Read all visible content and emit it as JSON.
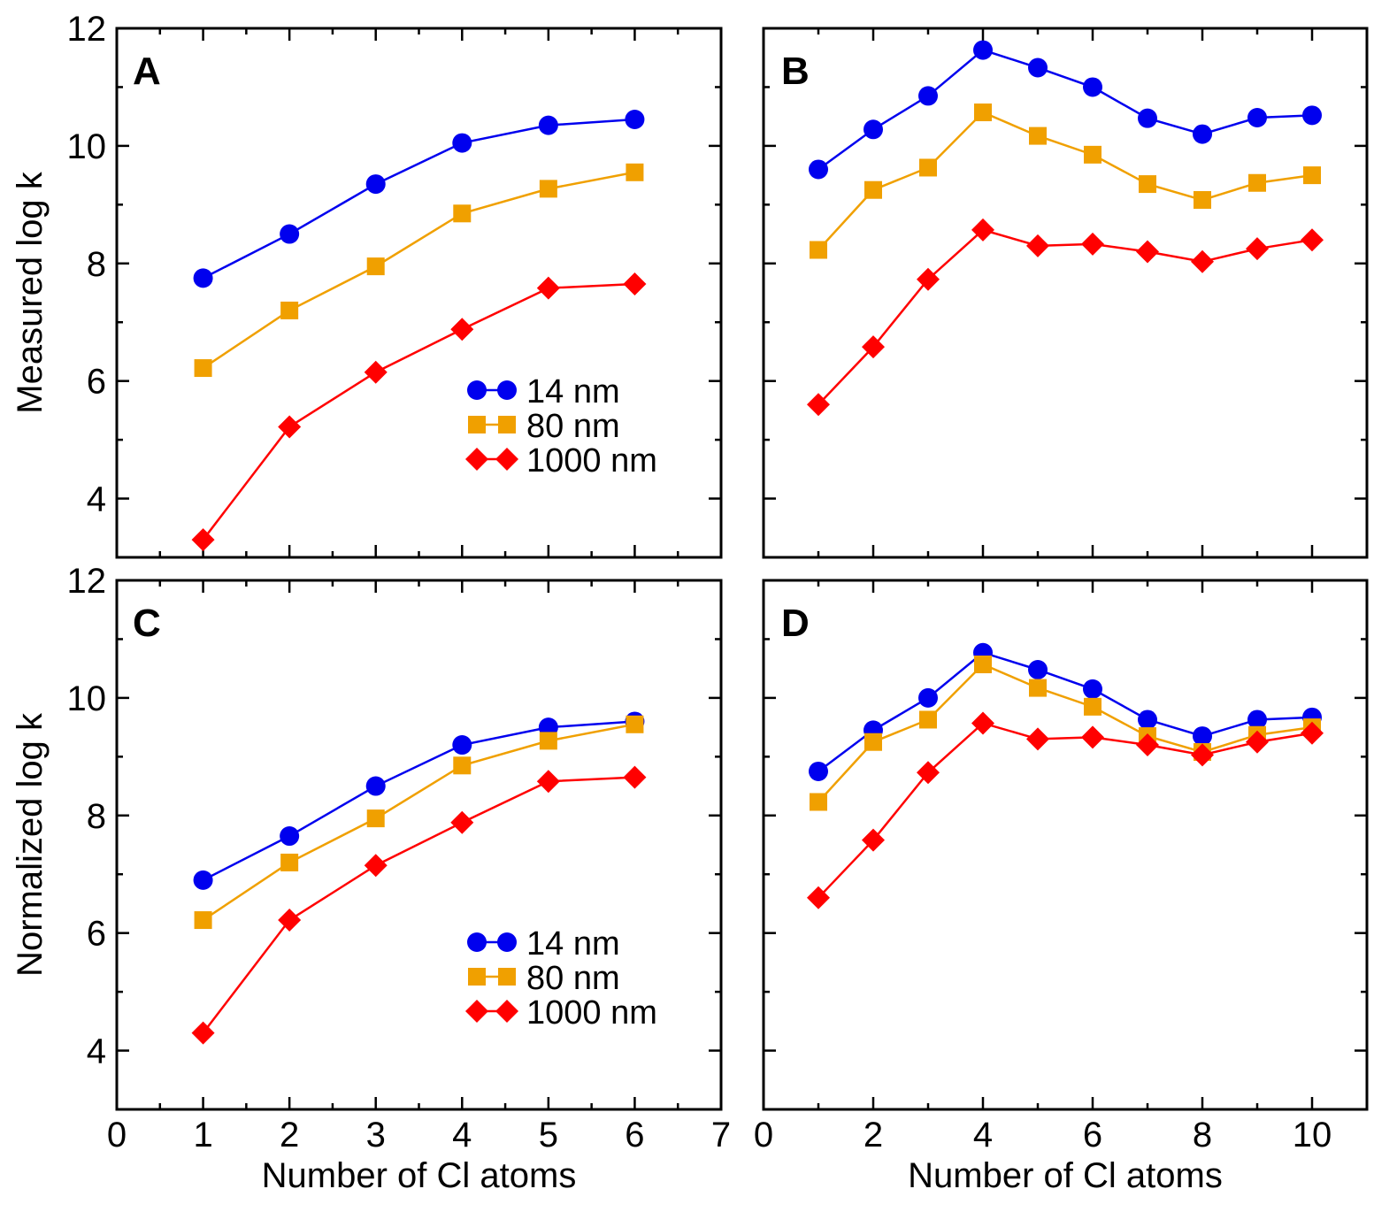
{
  "chart_data": [
    {
      "panel": "A",
      "type": "line",
      "ylabel": "Measured log k",
      "xlabel": "",
      "xlim": [
        0,
        7
      ],
      "ylim": [
        3,
        12
      ],
      "xticks": [
        0,
        1,
        2,
        3,
        4,
        5,
        6,
        7
      ],
      "xticklabels_visible": false,
      "yticks": [
        4,
        6,
        8,
        10,
        12
      ],
      "yticklabels_visible": true,
      "legend": "center-right",
      "series": [
        {
          "name": "14 nm",
          "color": "#0000ee",
          "marker": "circle",
          "x": [
            1,
            2,
            3,
            4,
            5,
            6
          ],
          "values": [
            7.75,
            8.5,
            9.35,
            10.05,
            10.35,
            10.45
          ]
        },
        {
          "name": "80 nm",
          "color": "#f0a000",
          "marker": "square",
          "x": [
            1,
            2,
            3,
            4,
            5,
            6
          ],
          "values": [
            6.22,
            7.2,
            7.95,
            8.85,
            9.27,
            9.55
          ]
        },
        {
          "name": "1000 nm",
          "color": "#ff0000",
          "marker": "diamond",
          "x": [
            1,
            2,
            3,
            4,
            5,
            6
          ],
          "values": [
            3.3,
            5.22,
            6.15,
            6.88,
            7.58,
            7.65
          ]
        }
      ]
    },
    {
      "panel": "B",
      "type": "line",
      "ylabel": "",
      "xlabel": "",
      "xlim": [
        0,
        11
      ],
      "ylim": [
        3,
        12
      ],
      "xticks": [
        0,
        2,
        4,
        6,
        8,
        10
      ],
      "xticklabels_visible": false,
      "yticks": [
        4,
        6,
        8,
        10,
        12
      ],
      "yticklabels_visible": false,
      "legend": "none",
      "series": [
        {
          "name": "14 nm",
          "color": "#0000ee",
          "marker": "circle",
          "x": [
            1,
            2,
            3,
            4,
            5,
            6,
            7,
            8,
            9,
            10
          ],
          "values": [
            9.6,
            10.28,
            10.85,
            11.63,
            11.33,
            11.0,
            10.47,
            10.2,
            10.48,
            10.52
          ]
        },
        {
          "name": "80 nm",
          "color": "#f0a000",
          "marker": "square",
          "x": [
            1,
            2,
            3,
            4,
            5,
            6,
            7,
            8,
            9,
            10
          ],
          "values": [
            8.23,
            9.25,
            9.63,
            10.57,
            10.17,
            9.85,
            9.35,
            9.08,
            9.37,
            9.5
          ]
        },
        {
          "name": "1000 nm",
          "color": "#ff0000",
          "marker": "diamond",
          "x": [
            1,
            2,
            3,
            4,
            5,
            6,
            7,
            8,
            9,
            10
          ],
          "values": [
            5.6,
            6.58,
            7.73,
            8.57,
            8.3,
            8.33,
            8.2,
            8.03,
            8.25,
            8.4
          ]
        }
      ]
    },
    {
      "panel": "C",
      "type": "line",
      "ylabel": "Normalized log k",
      "xlabel": "Number of Cl atoms",
      "xlim": [
        0,
        7
      ],
      "ylim": [
        3,
        12
      ],
      "xticks": [
        0,
        1,
        2,
        3,
        4,
        5,
        6,
        7
      ],
      "xticklabels_visible": true,
      "yticks": [
        4,
        6,
        8,
        10,
        12
      ],
      "yticklabels_visible": true,
      "legend": "lower-right",
      "series": [
        {
          "name": "14 nm",
          "color": "#0000ee",
          "marker": "circle",
          "x": [
            1,
            2,
            3,
            4,
            5,
            6
          ],
          "values": [
            6.9,
            7.65,
            8.5,
            9.2,
            9.5,
            9.6
          ]
        },
        {
          "name": "80 nm",
          "color": "#f0a000",
          "marker": "square",
          "x": [
            1,
            2,
            3,
            4,
            5,
            6
          ],
          "values": [
            6.22,
            7.2,
            7.95,
            8.85,
            9.27,
            9.55
          ]
        },
        {
          "name": "1000 nm",
          "color": "#ff0000",
          "marker": "diamond",
          "x": [
            1,
            2,
            3,
            4,
            5,
            6
          ],
          "values": [
            4.3,
            6.22,
            7.15,
            7.88,
            8.58,
            8.65
          ]
        }
      ]
    },
    {
      "panel": "D",
      "type": "line",
      "ylabel": "",
      "xlabel": "Number of Cl atoms",
      "xlim": [
        0,
        11
      ],
      "ylim": [
        3,
        12
      ],
      "xticks": [
        0,
        2,
        4,
        6,
        8,
        10
      ],
      "xticklabels_visible": true,
      "yticks": [
        4,
        6,
        8,
        10,
        12
      ],
      "yticklabels_visible": false,
      "legend": "none",
      "series": [
        {
          "name": "14 nm",
          "color": "#0000ee",
          "marker": "circle",
          "x": [
            1,
            2,
            3,
            4,
            5,
            6,
            7,
            8,
            9,
            10
          ],
          "values": [
            8.75,
            9.45,
            10.0,
            10.77,
            10.48,
            10.15,
            9.63,
            9.35,
            9.63,
            9.67
          ]
        },
        {
          "name": "80 nm",
          "color": "#f0a000",
          "marker": "square",
          "x": [
            1,
            2,
            3,
            4,
            5,
            6,
            7,
            8,
            9,
            10
          ],
          "values": [
            8.23,
            9.25,
            9.63,
            10.57,
            10.17,
            9.85,
            9.35,
            9.08,
            9.37,
            9.5
          ]
        },
        {
          "name": "1000 nm",
          "color": "#ff0000",
          "marker": "diamond",
          "x": [
            1,
            2,
            3,
            4,
            5,
            6,
            7,
            8,
            9,
            10
          ],
          "values": [
            6.6,
            7.58,
            8.73,
            9.57,
            9.3,
            9.33,
            9.2,
            9.03,
            9.25,
            9.4
          ]
        }
      ]
    }
  ]
}
